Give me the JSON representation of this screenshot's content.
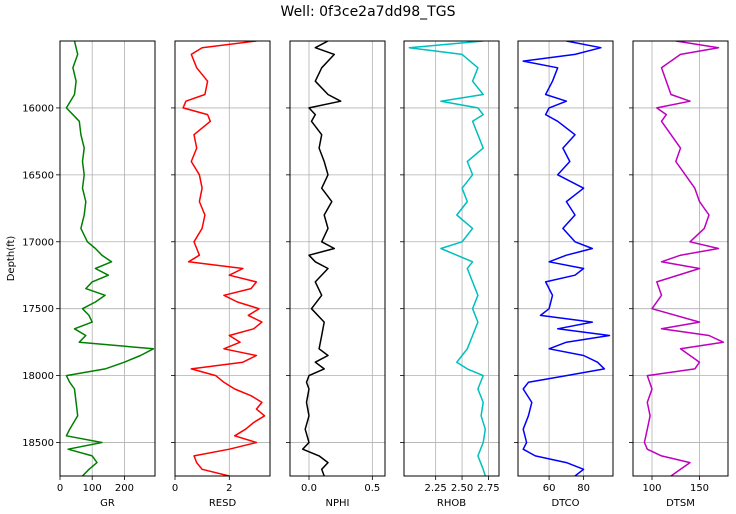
{
  "title": "Well: 0f3ce2a7dd98_TGS",
  "chart_data": [
    {
      "type": "line",
      "xlabel": "GR",
      "ylabel": "Depth(ft)",
      "xlim": [
        0,
        295
      ],
      "ylim": [
        18750,
        15500
      ],
      "xticks": [
        "0",
        "100",
        "200"
      ],
      "xtick_values": [
        0,
        100,
        200
      ],
      "yticks": [
        "16000",
        "16500",
        "17000",
        "17500",
        "18000",
        "18500"
      ],
      "ytick_values": [
        16000,
        16500,
        17000,
        17500,
        18000,
        18500
      ],
      "grid": true,
      "color": "#008000",
      "series": [
        {
          "depth": [
            15500,
            15600,
            15700,
            15800,
            15900,
            16000,
            16100,
            16200,
            16300,
            16400,
            16500,
            16600,
            16700,
            16800,
            16900,
            17000,
            17050,
            17100,
            17150,
            17200,
            17250,
            17300,
            17350,
            17400,
            17450,
            17500,
            17550,
            17600,
            17650,
            17700,
            17750,
            17800,
            17850,
            17900,
            17950,
            18000,
            18050,
            18100,
            18200,
            18300,
            18400,
            18450,
            18500,
            18550,
            18600,
            18650,
            18700,
            18750
          ],
          "values": [
            45,
            55,
            40,
            50,
            45,
            20,
            60,
            65,
            75,
            70,
            75,
            70,
            80,
            75,
            65,
            85,
            110,
            130,
            160,
            110,
            150,
            100,
            80,
            140,
            110,
            70,
            90,
            100,
            45,
            80,
            60,
            290,
            250,
            200,
            140,
            20,
            30,
            45,
            50,
            55,
            30,
            20,
            130,
            25,
            100,
            115,
            90,
            70
          ]
        }
      ]
    },
    {
      "type": "line",
      "xlabel": "RESD",
      "xlim": [
        0,
        3.5
      ],
      "ylim": [
        18750,
        15500
      ],
      "xticks": [
        "0",
        "2"
      ],
      "xtick_values": [
        0,
        2
      ],
      "grid": true,
      "color": "#ff0000",
      "series": [
        {
          "depth": [
            15500,
            15550,
            15600,
            15700,
            15800,
            15900,
            15950,
            16000,
            16050,
            16100,
            16200,
            16300,
            16400,
            16500,
            16600,
            16700,
            16800,
            16900,
            17000,
            17050,
            17100,
            17150,
            17200,
            17250,
            17300,
            17350,
            17400,
            17450,
            17500,
            17550,
            17600,
            17650,
            17700,
            17750,
            17800,
            17850,
            17900,
            17950,
            18000,
            18050,
            18100,
            18150,
            18200,
            18250,
            18300,
            18350,
            18400,
            18450,
            18500,
            18550,
            18600,
            18650,
            18700,
            18750
          ],
          "values": [
            3.0,
            1.0,
            0.6,
            0.8,
            1.2,
            1.1,
            0.4,
            0.3,
            1.2,
            1.3,
            0.7,
            0.8,
            0.6,
            0.9,
            1.0,
            0.9,
            1.1,
            1.0,
            0.7,
            0.8,
            0.9,
            0.5,
            2.5,
            2.0,
            3.0,
            2.8,
            1.8,
            2.3,
            3.1,
            2.7,
            3.2,
            2.9,
            2.0,
            2.4,
            1.8,
            3.0,
            2.5,
            0.6,
            1.5,
            1.8,
            2.2,
            2.8,
            3.2,
            3.0,
            3.3,
            2.9,
            2.6,
            2.2,
            3.0,
            2.0,
            0.7,
            0.8,
            1.0,
            2.0
          ]
        }
      ]
    },
    {
      "type": "line",
      "xlabel": "NPHI",
      "xlim": [
        -0.15,
        0.6
      ],
      "ylim": [
        18750,
        15500
      ],
      "xticks": [
        "0.0",
        "0.5"
      ],
      "xtick_values": [
        0.0,
        0.5
      ],
      "grid": true,
      "color": "#000000",
      "series": [
        {
          "depth": [
            15500,
            15550,
            15600,
            15700,
            15800,
            15900,
            15950,
            16000,
            16050,
            16100,
            16200,
            16300,
            16400,
            16500,
            16600,
            16700,
            16800,
            16900,
            17000,
            17050,
            17100,
            17150,
            17200,
            17300,
            17400,
            17500,
            17600,
            17700,
            17800,
            17850,
            17900,
            17950,
            18000,
            18050,
            18100,
            18200,
            18300,
            18400,
            18500,
            18550,
            18600,
            18650,
            18700,
            18750
          ],
          "values": [
            0.15,
            0.05,
            0.2,
            0.1,
            0.05,
            0.15,
            0.25,
            0.0,
            0.05,
            0.02,
            0.1,
            0.08,
            0.12,
            0.15,
            0.1,
            0.18,
            0.12,
            0.15,
            0.1,
            0.2,
            0.0,
            0.05,
            0.15,
            0.05,
            0.1,
            0.02,
            0.12,
            0.1,
            0.08,
            0.15,
            0.05,
            0.12,
            0.0,
            -0.02,
            0.0,
            -0.02,
            0.0,
            -0.03,
            0.0,
            -0.05,
            0.08,
            0.15,
            0.1,
            0.12
          ]
        }
      ]
    },
    {
      "type": "line",
      "xlabel": "RHOB",
      "xlim": [
        1.95,
        2.85
      ],
      "ylim": [
        18750,
        15500
      ],
      "xticks": [
        "2.25",
        "2.50",
        "2.75"
      ],
      "xtick_values": [
        2.25,
        2.5,
        2.75
      ],
      "grid": true,
      "color": "#00bfbf",
      "series": [
        {
          "depth": [
            15500,
            15550,
            15600,
            15700,
            15800,
            15900,
            15950,
            16000,
            16050,
            16100,
            16200,
            16300,
            16400,
            16500,
            16600,
            16700,
            16800,
            16900,
            17000,
            17050,
            17100,
            17150,
            17200,
            17300,
            17400,
            17500,
            17600,
            17700,
            17800,
            17850,
            17900,
            17950,
            18000,
            18100,
            18200,
            18300,
            18400,
            18500,
            18600,
            18700,
            18750
          ],
          "values": [
            2.7,
            2.0,
            2.5,
            2.65,
            2.6,
            2.7,
            2.3,
            2.65,
            2.7,
            2.6,
            2.65,
            2.7,
            2.55,
            2.6,
            2.5,
            2.55,
            2.45,
            2.6,
            2.5,
            2.3,
            2.45,
            2.6,
            2.55,
            2.6,
            2.65,
            2.6,
            2.65,
            2.6,
            2.55,
            2.5,
            2.45,
            2.55,
            2.7,
            2.65,
            2.7,
            2.68,
            2.72,
            2.7,
            2.65,
            2.7,
            2.72
          ]
        }
      ]
    },
    {
      "type": "line",
      "xlabel": "DTCO",
      "xlim": [
        42,
        97
      ],
      "ylim": [
        18750,
        15500
      ],
      "xticks": [
        "60",
        "80"
      ],
      "xtick_values": [
        60,
        80
      ],
      "grid": true,
      "color": "#0000ff",
      "series": [
        {
          "depth": [
            15500,
            15550,
            15600,
            15650,
            15700,
            15800,
            15900,
            15950,
            16000,
            16050,
            16100,
            16200,
            16300,
            16400,
            16500,
            16600,
            16700,
            16800,
            16900,
            17000,
            17050,
            17100,
            17150,
            17200,
            17250,
            17300,
            17400,
            17500,
            17550,
            17600,
            17650,
            17700,
            17750,
            17800,
            17850,
            17900,
            17950,
            18000,
            18050,
            18100,
            18200,
            18300,
            18400,
            18500,
            18550,
            18600,
            18650,
            18700,
            18750
          ],
          "values": [
            70,
            90,
            75,
            45,
            65,
            62,
            58,
            70,
            60,
            58,
            65,
            75,
            68,
            72,
            65,
            80,
            70,
            75,
            68,
            75,
            85,
            70,
            60,
            80,
            75,
            58,
            62,
            60,
            55,
            85,
            65,
            95,
            70,
            60,
            80,
            88,
            92,
            70,
            48,
            45,
            50,
            48,
            45,
            47,
            45,
            52,
            70,
            80,
            75
          ]
        }
      ]
    },
    {
      "type": "line",
      "xlabel": "DTSM",
      "xlim": [
        80,
        180
      ],
      "ylim": [
        18750,
        15500
      ],
      "xticks": [
        "100",
        "150"
      ],
      "xtick_values": [
        100,
        150
      ],
      "grid": true,
      "color": "#bf00bf",
      "series": [
        {
          "depth": [
            15500,
            15550,
            15600,
            15700,
            15800,
            15900,
            15950,
            16000,
            16050,
            16100,
            16200,
            16300,
            16400,
            16500,
            16600,
            16700,
            16800,
            16900,
            17000,
            17050,
            17100,
            17150,
            17200,
            17300,
            17400,
            17500,
            17600,
            17650,
            17700,
            17750,
            17800,
            17850,
            17900,
            17950,
            18000,
            18100,
            18200,
            18300,
            18400,
            18500,
            18550,
            18600,
            18650,
            18700,
            18750
          ],
          "values": [
            125,
            170,
            130,
            110,
            115,
            120,
            140,
            105,
            115,
            110,
            120,
            130,
            125,
            135,
            145,
            150,
            160,
            155,
            140,
            170,
            130,
            110,
            150,
            105,
            110,
            100,
            150,
            110,
            160,
            175,
            130,
            140,
            150,
            145,
            95,
            100,
            95,
            98,
            95,
            92,
            95,
            110,
            140,
            130,
            120
          ]
        }
      ]
    }
  ]
}
